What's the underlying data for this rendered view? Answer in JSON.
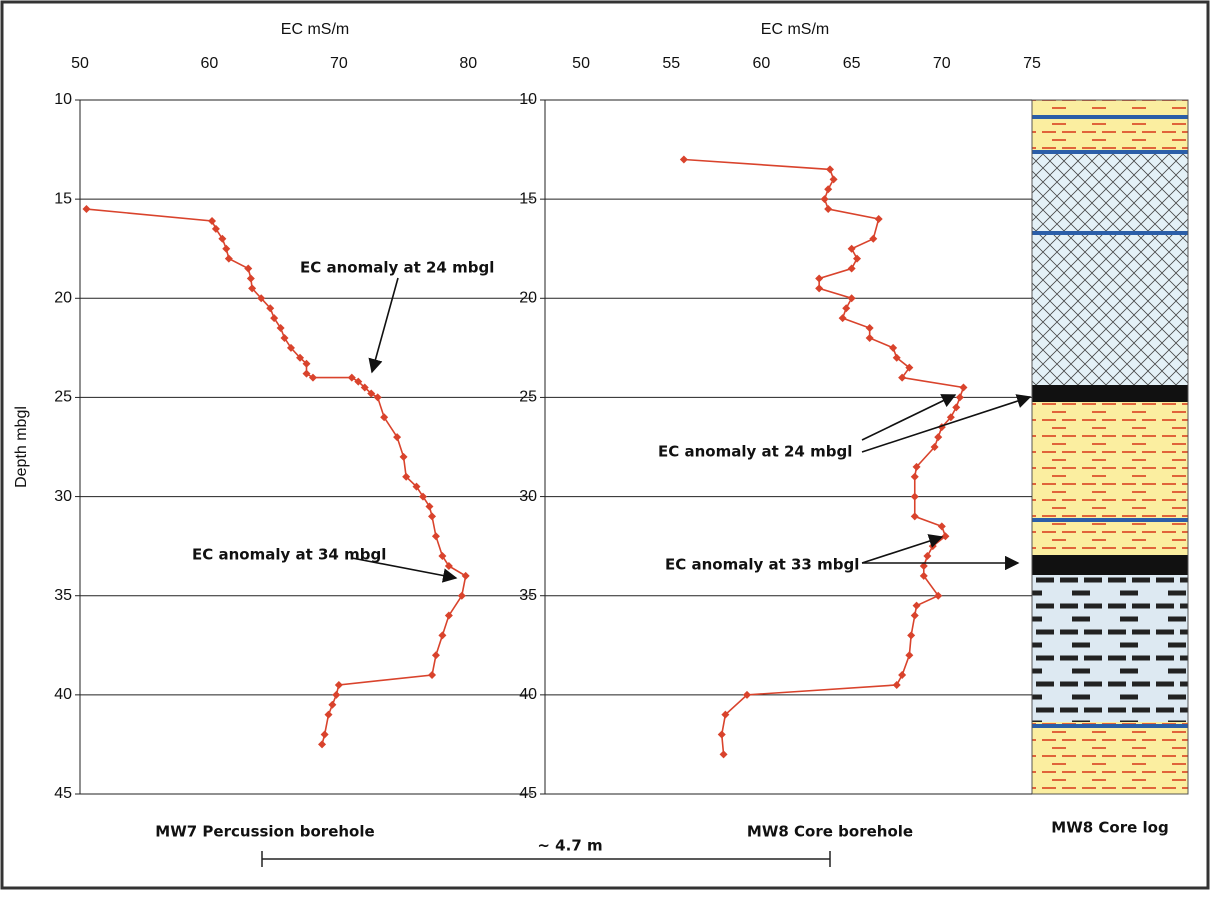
{
  "chart_data": [
    {
      "type": "line",
      "xlabel": "EC mS/m",
      "ylabel": "Depth mbgl",
      "caption": "MW7 Percussion borehole",
      "color": "#d9432c",
      "grid": true,
      "xlim": [
        50,
        85
      ],
      "xticks": [
        50,
        60,
        70,
        80
      ],
      "ylim": [
        45,
        10
      ],
      "yticks": [
        10,
        15,
        20,
        25,
        30,
        35,
        40,
        45
      ],
      "x": [
        50.5,
        60.2,
        60.5,
        61,
        61.3,
        61.5,
        63,
        63.2,
        63.3,
        64,
        64.7,
        65,
        65.5,
        65.8,
        66.3,
        67,
        67.5,
        67.5,
        68,
        71,
        71.5,
        72,
        72.5,
        73,
        73.5,
        74.5,
        75,
        75.2,
        76,
        76.5,
        77,
        77.2,
        77.5,
        78,
        78.5,
        79.8,
        79.5,
        78.5,
        78,
        77.5,
        77.2,
        70,
        69.8,
        69.5,
        69.2,
        68.9,
        68.7
      ],
      "values": [
        15.5,
        16.1,
        16.5,
        17,
        17.5,
        18,
        18.5,
        19,
        19.5,
        20,
        20.5,
        21,
        21.5,
        22,
        22.5,
        23,
        23.3,
        23.8,
        24,
        24,
        24.2,
        24.5,
        24.8,
        25,
        26,
        27,
        28,
        29,
        29.5,
        30,
        30.5,
        31,
        32,
        33,
        33.5,
        34,
        35,
        36,
        37,
        38,
        39,
        39.5,
        40,
        40.5,
        41,
        42,
        42.5
      ],
      "annotations": [
        "EC anomaly at 24 mbgl",
        "EC anomaly at 34 mbgl"
      ]
    },
    {
      "type": "line",
      "xlabel": "EC mS/m",
      "caption": "MW8 Core borehole",
      "color": "#d9432c",
      "grid": true,
      "xlim": [
        48,
        75
      ],
      "xticks": [
        50,
        55,
        60,
        65,
        70,
        75
      ],
      "ylim": [
        45,
        10
      ],
      "yticks": [
        10,
        15,
        20,
        25,
        30,
        35,
        40,
        45
      ],
      "x": [
        55.7,
        63.8,
        64,
        63.7,
        63.5,
        63.7,
        66.5,
        66.2,
        65,
        65.3,
        65,
        63.2,
        63.2,
        65,
        64.7,
        64.5,
        66,
        66,
        67.3,
        67.5,
        68.2,
        67.8,
        71.2,
        71,
        70.8,
        70.5,
        70,
        69.8,
        69.6,
        68.6,
        68.5,
        68.5,
        68.5,
        70,
        70.2,
        69.5,
        69.2,
        69,
        69,
        69.8,
        68.6,
        68.5,
        68.3,
        68.2,
        67.8,
        67.5,
        59.2,
        58,
        57.8,
        57.9
      ],
      "values": [
        13,
        13.5,
        14,
        14.5,
        15,
        15.5,
        16,
        17,
        17.5,
        18,
        18.5,
        19,
        19.5,
        20,
        20.5,
        21,
        21.5,
        22,
        22.5,
        23,
        23.5,
        24,
        24.5,
        25,
        25.5,
        26,
        26.5,
        27,
        27.5,
        28.5,
        29,
        30,
        31,
        31.5,
        32,
        32.5,
        33,
        33.5,
        34,
        35,
        35.5,
        36,
        37,
        38,
        39,
        39.5,
        40,
        41,
        42,
        43
      ],
      "annotations": [
        "EC anomaly at 24 mbgl",
        "EC anomaly at 33 mbgl"
      ]
    }
  ],
  "core_log_title": "MW8 Core log",
  "scale_bar_label": "~ 4.7 m"
}
